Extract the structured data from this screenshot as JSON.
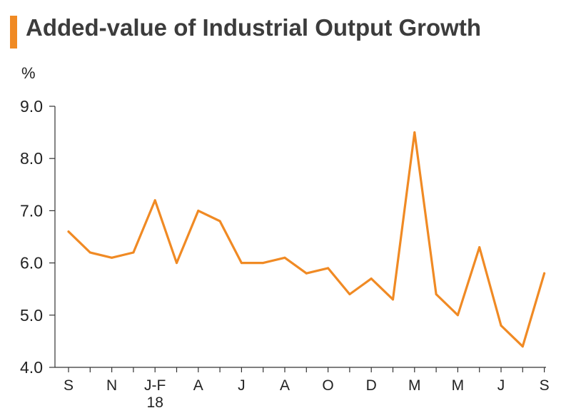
{
  "chart_data": {
    "type": "line",
    "title": "Added-value of Industrial Output Growth",
    "ylabel": "%",
    "xlabel": "",
    "ylim": [
      4.0,
      9.0
    ],
    "yticks": [
      4.0,
      5.0,
      6.0,
      7.0,
      8.0,
      9.0
    ],
    "ytick_labels": [
      "4.0",
      "5.0",
      "6.0",
      "7.0",
      "8.0",
      "9.0"
    ],
    "x_tick_labels": [
      {
        "index": 0,
        "label": "S"
      },
      {
        "index": 2,
        "label": "N"
      },
      {
        "index": 4,
        "label": "J-F",
        "sublabel": "18"
      },
      {
        "index": 6,
        "label": "A"
      },
      {
        "index": 8,
        "label": "J"
      },
      {
        "index": 10,
        "label": "A"
      },
      {
        "index": 12,
        "label": "O"
      },
      {
        "index": 14,
        "label": "D"
      },
      {
        "index": 16,
        "label": "M"
      },
      {
        "index": 18,
        "label": "M"
      },
      {
        "index": 20,
        "label": "J"
      },
      {
        "index": 22,
        "label": "S"
      }
    ],
    "grid": false,
    "series": [
      {
        "color": "#f08a24",
        "values": [
          6.6,
          6.2,
          6.1,
          6.2,
          7.2,
          6.0,
          7.0,
          6.8,
          6.0,
          6.0,
          6.1,
          5.8,
          5.9,
          5.4,
          5.7,
          5.3,
          8.5,
          5.4,
          5.0,
          6.3,
          4.8,
          4.4,
          5.8
        ]
      }
    ]
  }
}
